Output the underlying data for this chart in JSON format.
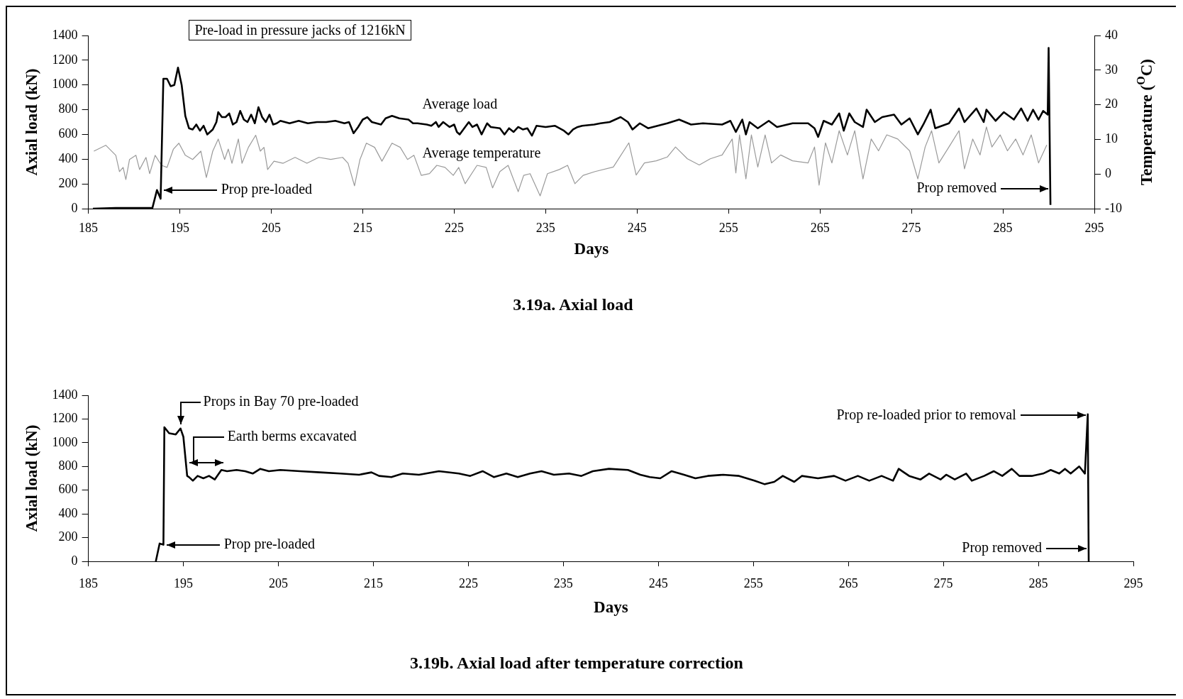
{
  "chart_data": [
    {
      "type": "line",
      "title": "3.19a. Axial load",
      "xlabel": "Days",
      "ylabel": "Axial load (kN)",
      "y2label": "Temperature ($^{O}$C)",
      "xlim": [
        185,
        295
      ],
      "xticks": [
        185,
        195,
        205,
        215,
        225,
        235,
        245,
        255,
        265,
        275,
        285,
        295
      ],
      "ylim": [
        0,
        1400
      ],
      "yticks": [
        0,
        200,
        400,
        600,
        800,
        1000,
        1200,
        1400
      ],
      "y2lim": [
        -10,
        40
      ],
      "y2ticks": [
        -10,
        0,
        10,
        20,
        30,
        40
      ],
      "grid": false,
      "marker": "none",
      "series": [
        {
          "name": "Average load",
          "color": "#000000",
          "x": [
            185.5,
            188,
            190,
            192,
            192.5,
            192.9,
            193.2,
            193.6,
            194,
            194.4,
            194.8,
            195.2,
            195.6,
            196,
            196.4,
            196.8,
            197.2,
            197.6,
            198,
            198.6,
            199,
            199.2,
            199.6,
            200,
            200.4,
            200.8,
            201.2,
            201.6,
            202,
            202.4,
            202.8,
            203.2,
            203.6,
            204,
            204.4,
            204.8,
            205.2,
            205.6,
            206,
            207,
            208,
            209,
            210,
            211,
            212,
            213,
            213.5,
            214,
            214.5,
            215,
            215.5,
            216,
            217,
            217.5,
            218.2,
            219,
            220,
            220.5,
            221,
            222,
            222.5,
            223,
            223.3,
            223.8,
            224.5,
            225,
            225.3,
            225.6,
            226,
            226.6,
            227,
            227.5,
            228,
            228.6,
            229,
            230,
            230.5,
            231,
            231.5,
            232,
            232.5,
            233,
            233.5,
            234,
            235,
            236,
            237,
            237.5,
            238,
            238.5,
            239,
            240.3,
            241,
            242,
            243.2,
            244,
            244.5,
            245.3,
            246.2,
            248.3,
            249.6,
            250.9,
            252.2,
            254.3,
            255.2,
            255.8,
            256.5,
            256.9,
            257.3,
            258.2,
            259.4,
            260.3,
            262,
            263.7,
            264.4,
            264.8,
            265.4,
            266.3,
            267.1,
            267.6,
            268.2,
            268.8,
            269.7,
            270.1,
            271,
            271.8,
            273.1,
            273.9,
            274.8,
            275.7,
            276.3,
            277.1,
            277.6,
            279.1,
            280.2,
            280.8,
            282.1,
            282.9,
            283.2,
            284.2,
            285.1,
            286.2,
            287,
            287.7,
            288.3,
            288.9,
            289.4,
            289.9,
            290,
            290.2
          ],
          "values": [
            0,
            5,
            5,
            5,
            150,
            80,
            1050,
            1050,
            990,
            1000,
            1140,
            1000,
            750,
            650,
            640,
            680,
            630,
            670,
            600,
            640,
            700,
            780,
            740,
            740,
            770,
            680,
            700,
            790,
            720,
            700,
            760,
            690,
            820,
            740,
            700,
            760,
            680,
            690,
            710,
            690,
            710,
            690,
            700,
            700,
            710,
            690,
            700,
            610,
            660,
            720,
            740,
            700,
            680,
            730,
            750,
            730,
            720,
            690,
            690,
            680,
            670,
            700,
            660,
            700,
            660,
            680,
            620,
            600,
            640,
            700,
            660,
            680,
            600,
            690,
            660,
            650,
            600,
            650,
            620,
            660,
            640,
            650,
            590,
            670,
            660,
            670,
            630,
            600,
            640,
            660,
            670,
            680,
            690,
            700,
            740,
            700,
            640,
            690,
            650,
            690,
            720,
            680,
            690,
            680,
            710,
            620,
            720,
            600,
            700,
            650,
            710,
            660,
            690,
            690,
            650,
            580,
            710,
            680,
            770,
            630,
            770,
            700,
            660,
            800,
            700,
            740,
            760,
            680,
            730,
            600,
            680,
            800,
            650,
            690,
            810,
            700,
            810,
            700,
            800,
            710,
            780,
            720,
            810,
            710,
            800,
            720,
            790,
            760,
            1300,
            30
          ]
        },
        {
          "name": "Average temperature",
          "color": "#9a9a9a",
          "axis": "y2",
          "x": [
            185.6,
            186.9,
            188,
            188.4,
            188.8,
            189.1,
            189.5,
            190.2,
            190.6,
            191.3,
            191.7,
            192.3,
            193,
            193.6,
            194.3,
            194.9,
            195.6,
            196.4,
            197.3,
            197.9,
            198.6,
            199.2,
            199.9,
            200.3,
            200.7,
            201.4,
            201.8,
            202.5,
            203.3,
            203.8,
            204.2,
            204.6,
            205.3,
            206.3,
            207.6,
            208.9,
            210.2,
            211.5,
            212.8,
            213.4,
            214.1,
            214.7,
            215.4,
            216.3,
            217.1,
            218.2,
            219.1,
            219.9,
            220.6,
            221.4,
            222.3,
            223.1,
            224,
            224.9,
            225.5,
            226.2,
            227.5,
            228.5,
            229.2,
            230,
            230.9,
            232,
            232.6,
            233.3,
            234.4,
            235.2,
            236.5,
            237.4,
            238.2,
            239.1,
            240.4,
            242.4,
            244.1,
            244.9,
            245.8,
            247.1,
            248.3,
            249.2,
            250.5,
            251.8,
            253,
            254.3,
            255.4,
            255.8,
            256.2,
            256.9,
            257.5,
            258.2,
            259,
            259.7,
            260.7,
            262,
            263.7,
            264.4,
            264.9,
            265.6,
            266.3,
            267.1,
            268,
            268.8,
            269.7,
            270.6,
            271.4,
            272.3,
            273.5,
            274.8,
            275.7,
            276.5,
            277.2,
            278,
            279.1,
            280.2,
            280.8,
            281.7,
            282.5,
            283.2,
            283.8,
            284.7,
            285.5,
            286.4,
            287.2,
            288.1,
            288.9,
            289.8
          ],
          "values": [
            6.6,
            8.3,
            5.4,
            0.7,
            1.9,
            -1.6,
            4.2,
            5.4,
            1.3,
            4.8,
            0.1,
            5.4,
            2.5,
            1.9,
            7.2,
            8.9,
            5.4,
            4.2,
            6.6,
            -1.0,
            6.6,
            10.1,
            4.2,
            7.2,
            3.1,
            10.1,
            3.1,
            7.7,
            11.2,
            6.6,
            7.7,
            1.3,
            3.7,
            3.1,
            4.8,
            3.1,
            4.8,
            4.2,
            4.8,
            3.1,
            -3.4,
            4.2,
            8.9,
            7.7,
            3.7,
            8.9,
            7.7,
            4.2,
            5.4,
            -0.4,
            0.1,
            2.5,
            1.9,
            -0.4,
            1.9,
            -2.8,
            2.5,
            1.9,
            -4.0,
            0.7,
            2.5,
            -5.1,
            -0.4,
            0.1,
            -6.3,
            0.1,
            1.3,
            2.5,
            -2.8,
            -0.4,
            0.7,
            2.0,
            9.0,
            -0.3,
            3.2,
            3.8,
            4.9,
            7.8,
            4.4,
            2.6,
            4.4,
            5.5,
            10.1,
            0.3,
            11.3,
            -1.4,
            11.3,
            2.0,
            11.3,
            3.2,
            5.5,
            3.8,
            3.2,
            7.8,
            -3.2,
            9.0,
            3.2,
            12.5,
            5.5,
            12.5,
            -1.4,
            10.1,
            6.7,
            11.3,
            10.1,
            6.7,
            -1.4,
            7.8,
            12.5,
            3.2,
            7.8,
            12.5,
            1.5,
            10.1,
            5.5,
            13.6,
            7.8,
            11.3,
            6.7,
            10.1,
            5.5,
            11.3,
            3.2,
            8.4
          ]
        }
      ],
      "annotations": [
        "Pre-load in pressure jacks of 1216kN",
        "Prop pre-loaded",
        "Prop removed"
      ]
    },
    {
      "type": "line",
      "title": "3.19b. Axial load after temperature correction",
      "xlabel": "Days",
      "ylabel": "Axial load (kN)",
      "xlim": [
        185,
        295
      ],
      "xticks": [
        185,
        195,
        205,
        215,
        225,
        235,
        245,
        255,
        265,
        275,
        285,
        295
      ],
      "ylim": [
        0,
        1400
      ],
      "yticks": [
        0,
        200,
        400,
        600,
        800,
        1000,
        1200,
        1400
      ],
      "grid": false,
      "marker": "none",
      "series": [
        {
          "color": "#000000",
          "x": [
            192.1,
            192.5,
            192.9,
            193,
            193.5,
            194.2,
            194.7,
            195,
            195.4,
            195.6,
            196,
            196.5,
            197.1,
            197.7,
            198.3,
            199,
            199.6,
            200.6,
            201.5,
            202.3,
            203.1,
            204,
            205.2,
            207.3,
            209.4,
            211.5,
            213.5,
            214.8,
            215.6,
            216.9,
            218.1,
            219.8,
            221.9,
            224,
            225.2,
            226.5,
            227.7,
            229,
            230.2,
            231.5,
            232.7,
            234,
            235.6,
            236.9,
            238.1,
            239.8,
            241.8,
            243.1,
            244.1,
            245.2,
            246.4,
            247.7,
            248.9,
            250.2,
            251.8,
            253.5,
            255.1,
            256.2,
            257.2,
            258.1,
            259.3,
            260.1,
            261.8,
            263.5,
            264.7,
            266,
            267.2,
            268.5,
            269.7,
            270.3,
            271.4,
            272.6,
            273.5,
            274.7,
            275.3,
            276.2,
            277.4,
            278,
            279.3,
            280.3,
            281.2,
            282.2,
            283,
            284.3,
            285.5,
            286.3,
            287.2,
            287.8,
            288.4,
            289.3,
            289.9,
            290.2,
            290.3
          ],
          "values": [
            0,
            150,
            140,
            1130,
            1080,
            1070,
            1120,
            1050,
            720,
            710,
            680,
            720,
            700,
            720,
            690,
            770,
            760,
            770,
            760,
            740,
            780,
            760,
            770,
            760,
            750,
            740,
            730,
            750,
            720,
            710,
            740,
            730,
            760,
            740,
            720,
            760,
            710,
            740,
            710,
            740,
            760,
            730,
            740,
            720,
            760,
            780,
            770,
            730,
            710,
            700,
            760,
            730,
            700,
            720,
            730,
            720,
            680,
            650,
            670,
            720,
            670,
            720,
            700,
            720,
            680,
            720,
            680,
            720,
            680,
            780,
            720,
            690,
            740,
            690,
            730,
            690,
            740,
            680,
            720,
            760,
            720,
            780,
            720,
            720,
            740,
            770,
            740,
            780,
            740,
            800,
            740,
            1240,
            0
          ]
        }
      ],
      "annotations": [
        "Props in Bay 70 pre-loaded",
        "Earth berms excavated",
        "Prop pre-loaded",
        "Prop re-loaded prior to removal",
        "Prop removed"
      ]
    }
  ]
}
